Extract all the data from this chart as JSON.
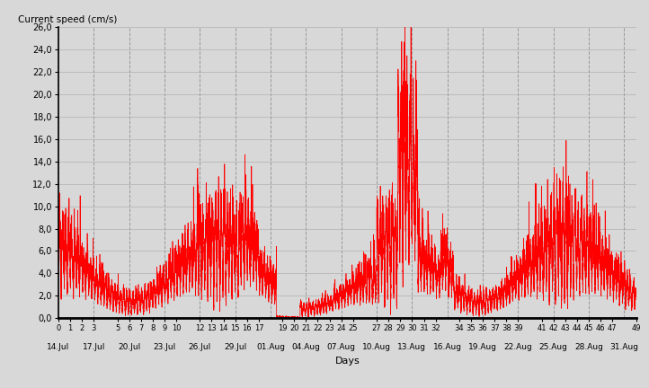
{
  "ylabel": "Current speed (cm/s)",
  "xlabel": "Days",
  "ylim": [
    0,
    26
  ],
  "yticks": [
    0.0,
    2.0,
    4.0,
    6.0,
    8.0,
    10.0,
    12.0,
    14.0,
    16.0,
    18.0,
    20.0,
    22.0,
    24.0,
    26.0
  ],
  "xlim": [
    0,
    49
  ],
  "xticks_top": [
    0,
    1,
    2,
    3,
    5,
    6,
    7,
    8,
    9,
    10,
    12,
    13,
    14,
    15,
    16,
    17,
    19,
    20,
    21,
    22,
    23,
    24,
    25,
    27,
    28,
    29,
    30,
    31,
    32,
    34,
    35,
    36,
    37,
    38,
    39,
    41,
    42,
    43,
    44,
    45,
    46,
    47,
    49
  ],
  "xticks_bottom": [
    0,
    3,
    6,
    9,
    12,
    15,
    18,
    21,
    24,
    27,
    30,
    33,
    36,
    39,
    42,
    45,
    48
  ],
  "xticklabels_bottom": [
    "14.Jul",
    "17.Jul",
    "20.Jul",
    "23.Jul",
    "26.Jul",
    "29.Jul",
    "01.Aug",
    "04.Aug",
    "07.Aug",
    "10.Aug",
    "13.Aug",
    "16.Aug",
    "19.Aug",
    "22.Aug",
    "25.Aug",
    "28.Aug",
    "31.Aug"
  ],
  "line_color": "#ff0000",
  "bg_color": "#d8d8d8",
  "grid_color": "#b0b0b0",
  "vgrid_color": "#999999",
  "vgrid_positions": [
    0,
    3,
    6,
    9,
    12,
    15,
    18,
    21,
    24,
    27,
    30,
    33,
    36,
    39,
    42,
    45,
    48
  ],
  "line_width": 0.5,
  "seed": 42
}
